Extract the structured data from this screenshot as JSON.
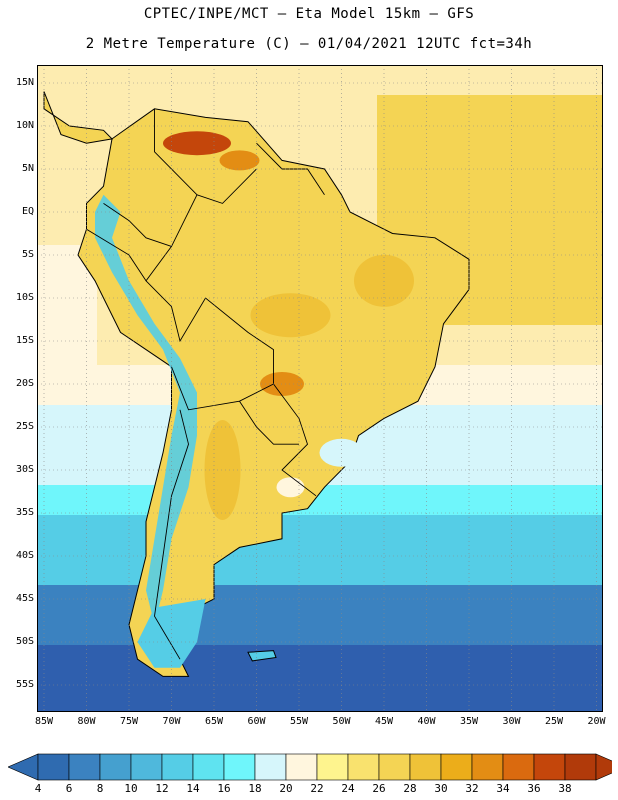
{
  "title_line1": "CPTEC/INPE/MCT –  Eta Model 15km – GFS",
  "title_line2": "2 Metre Temperature (C) – 01/04/2021 12UTC fct=34h",
  "lat_labels": [
    "15N",
    "10N",
    "5N",
    "EQ",
    "5S",
    "10S",
    "15S",
    "20S",
    "25S",
    "30S",
    "35S",
    "40S",
    "45S",
    "50S",
    "55S"
  ],
  "lon_labels": [
    "85W",
    "80W",
    "75W",
    "70W",
    "65W",
    "60W",
    "55W",
    "50W",
    "45W",
    "40W",
    "35W",
    "30W",
    "25W",
    "20W"
  ],
  "colorbar": {
    "levels": [
      "4",
      "6",
      "8",
      "10",
      "12",
      "14",
      "16",
      "18",
      "20",
      "22",
      "24",
      "26",
      "28",
      "30",
      "32",
      "34",
      "36",
      "38"
    ],
    "colors": [
      "#2f6bb0",
      "#3b82c0",
      "#45a0cf",
      "#4fb8dc",
      "#55cde6",
      "#5fe3f0",
      "#6ff6fb",
      "#d6f6fb",
      "#fff6de",
      "#fef48e",
      "#f9e26e",
      "#f4d454",
      "#efc238",
      "#ecad1a",
      "#e38d14",
      "#da6a0f",
      "#c4460b",
      "#b13a0a"
    ]
  },
  "map_colors": {
    "ocean_south_deep": "#2f5fae",
    "ocean_south_mid": "#3b82c0",
    "ocean_cyan": "#55cde6",
    "ocean_lightcyan": "#6ff6fb",
    "ocean_pale": "#d6f6fb",
    "ocean_cream": "#fff6de",
    "ocean_warm": "#fdecb0",
    "land_base": "#f4d454",
    "land_hot": "#efc238",
    "land_hotter": "#e38d14",
    "land_hottest": "#c4460b",
    "andes_cold": "#55cde6",
    "border": "#000000"
  }
}
